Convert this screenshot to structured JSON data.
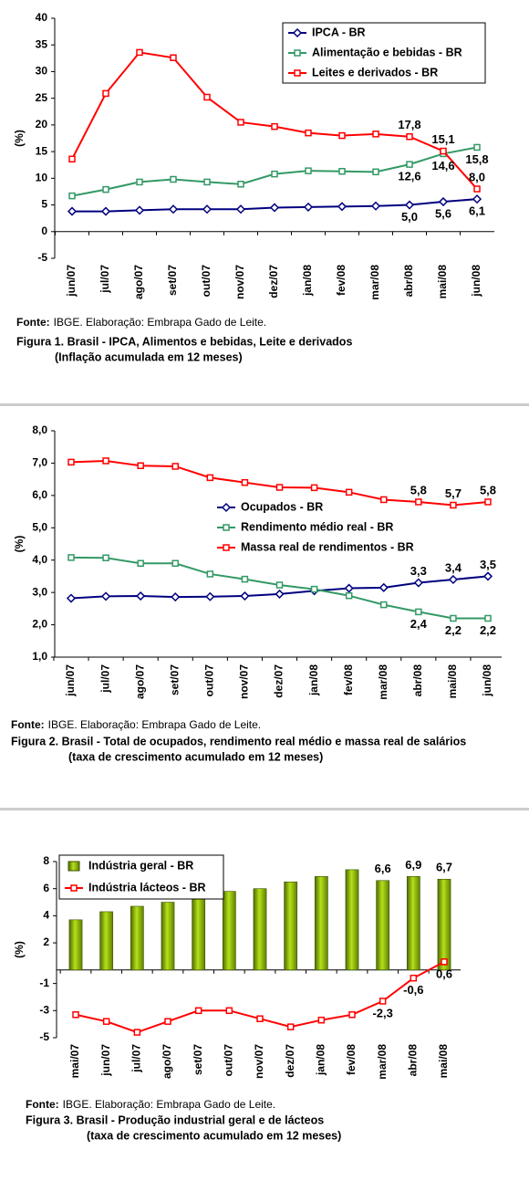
{
  "chart_data": [
    {
      "type": "line",
      "y_label": "(%)",
      "categories": [
        "jun/07",
        "jul/07",
        "ago/07",
        "set/07",
        "out/07",
        "nov/07",
        "dez/07",
        "jan/08",
        "fev/08",
        "mar/08",
        "abr/08",
        "mai/08",
        "jun/08"
      ],
      "series": [
        {
          "name": "IPCA - BR",
          "color": "#000080",
          "marker": "diamond",
          "values": [
            3.8,
            3.8,
            4.0,
            4.2,
            4.2,
            4.2,
            4.5,
            4.6,
            4.7,
            4.8,
            5.0,
            5.6,
            6.1
          ],
          "value_labels": [
            null,
            null,
            null,
            null,
            null,
            null,
            null,
            null,
            null,
            null,
            "5,0",
            "5,6",
            "6,1"
          ]
        },
        {
          "name": "Alimentação e bebidas - BR",
          "color": "#339966",
          "marker": "square",
          "values": [
            6.7,
            7.9,
            9.3,
            9.8,
            9.3,
            8.9,
            10.8,
            11.4,
            11.3,
            11.2,
            12.6,
            14.6,
            15.8
          ],
          "value_labels": [
            null,
            null,
            null,
            null,
            null,
            null,
            null,
            null,
            null,
            null,
            "12,6",
            "14,6",
            "15,8"
          ]
        },
        {
          "name": "Leites e derivados - BR",
          "color": "#ff0000",
          "marker": "square",
          "values": [
            13.6,
            25.9,
            33.6,
            32.6,
            25.2,
            20.5,
            19.7,
            18.5,
            18.0,
            18.3,
            17.8,
            15.1,
            8.0
          ],
          "value_labels": [
            null,
            null,
            null,
            null,
            null,
            null,
            null,
            null,
            null,
            null,
            "17,8",
            "15,1",
            "8,0"
          ]
        }
      ],
      "ylim": [
        -5,
        40
      ],
      "yticks": [
        -5,
        0,
        5,
        10,
        15,
        20,
        25,
        30,
        35,
        40
      ],
      "source_label": "Fonte:",
      "source": "IBGE. Elaboração: Embrapa Gado de Leite.",
      "title": "Figura 1. Brasil - IPCA, Alimentos e bebidas, Leite e derivados",
      "subtitle": "(Inflação acumulada em 12 meses)"
    },
    {
      "type": "line",
      "y_label": "(%)",
      "categories": [
        "jun/07",
        "jul/07",
        "ago/07",
        "set/07",
        "out/07",
        "nov/07",
        "dez/07",
        "jan/08",
        "fev/08",
        "mar/08",
        "abr/08",
        "mai/08",
        "jun/08"
      ],
      "series": [
        {
          "name": "Ocupados - BR",
          "color": "#000080",
          "marker": "diamond",
          "values": [
            2.82,
            2.88,
            2.89,
            2.86,
            2.87,
            2.89,
            2.95,
            3.05,
            3.13,
            3.15,
            3.3,
            3.4,
            3.5
          ],
          "value_labels": [
            null,
            null,
            null,
            null,
            null,
            null,
            null,
            null,
            null,
            null,
            "3,3",
            "3,4",
            "3,5"
          ]
        },
        {
          "name": "Rendimento médio real - BR",
          "color": "#339966",
          "marker": "square",
          "values": [
            4.08,
            4.07,
            3.9,
            3.9,
            3.57,
            3.41,
            3.23,
            3.1,
            2.9,
            2.62,
            2.4,
            2.2,
            2.2
          ],
          "value_labels": [
            null,
            null,
            null,
            null,
            null,
            null,
            null,
            null,
            null,
            null,
            "2,4",
            "2,2",
            "2,2"
          ]
        },
        {
          "name": "Massa real de rendimentos - BR",
          "color": "#ff0000",
          "marker": "square",
          "values": [
            7.03,
            7.07,
            6.92,
            6.9,
            6.55,
            6.4,
            6.25,
            6.24,
            6.1,
            5.87,
            5.8,
            5.7,
            5.8
          ],
          "value_labels": [
            null,
            null,
            null,
            null,
            null,
            null,
            null,
            null,
            null,
            null,
            "5,8",
            "5,7",
            "5,8"
          ]
        }
      ],
      "ylim": [
        1,
        8
      ],
      "yticks": [
        {
          "value": 1,
          "label": "1,0"
        },
        {
          "value": 2,
          "label": "2,0"
        },
        {
          "value": 3,
          "label": "3,0"
        },
        {
          "value": 4,
          "label": "4,0"
        },
        {
          "value": 5,
          "label": "5,0"
        },
        {
          "value": 6,
          "label": "6,0"
        },
        {
          "value": 7,
          "label": "7,0"
        },
        {
          "value": 8,
          "label": "8,0"
        }
      ],
      "source_label": "Fonte:",
      "source": "IBGE. Elaboração: Embrapa Gado de Leite.",
      "title": "Figura 2. Brasil - Total de ocupados, rendimento real médio e massa real de salários",
      "subtitle": "(taxa de crescimento acumulado em 12 meses)"
    },
    {
      "type": "combo",
      "y_label": "(%)",
      "categories": [
        "mai/07",
        "jun/07",
        "jul/07",
        "ago/07",
        "set/07",
        "out/07",
        "nov/07",
        "dez/07",
        "jan/08",
        "fev/08",
        "mar/08",
        "abr/08",
        "mai/08"
      ],
      "series": [
        {
          "name": "Indústria geral - BR",
          "type": "bar",
          "color": "#8fb800",
          "values": [
            3.7,
            4.3,
            4.7,
            5.0,
            5.3,
            5.8,
            6.0,
            6.5,
            6.9,
            7.4,
            6.6,
            6.9,
            6.7
          ],
          "value_labels": [
            null,
            null,
            null,
            null,
            null,
            null,
            null,
            null,
            null,
            null,
            "6,6",
            "6,9",
            "6,7"
          ]
        },
        {
          "name": "Indústria lácteos - BR",
          "type": "line",
          "color": "#ff0000",
          "marker": "square",
          "values": [
            -3.3,
            -3.8,
            -4.6,
            -3.8,
            -3.0,
            -3.0,
            -3.6,
            -4.2,
            -3.7,
            -3.3,
            -2.3,
            -0.6,
            0.6
          ],
          "value_labels": [
            null,
            null,
            null,
            null,
            null,
            null,
            null,
            null,
            null,
            null,
            "-2,3",
            "-0,6",
            "0,6"
          ]
        }
      ],
      "ylim": [
        -5,
        8
      ],
      "yticks": [
        -5,
        -3,
        -1,
        2,
        4,
        6,
        8
      ],
      "source_label": "Fonte:",
      "source": "IBGE. Elaboração: Embrapa Gado de Leite.",
      "title": "Figura 3. Brasil - Produção industrial geral e de lácteos",
      "subtitle": "(taxa de crescimento acumulado em 12 meses)"
    }
  ]
}
